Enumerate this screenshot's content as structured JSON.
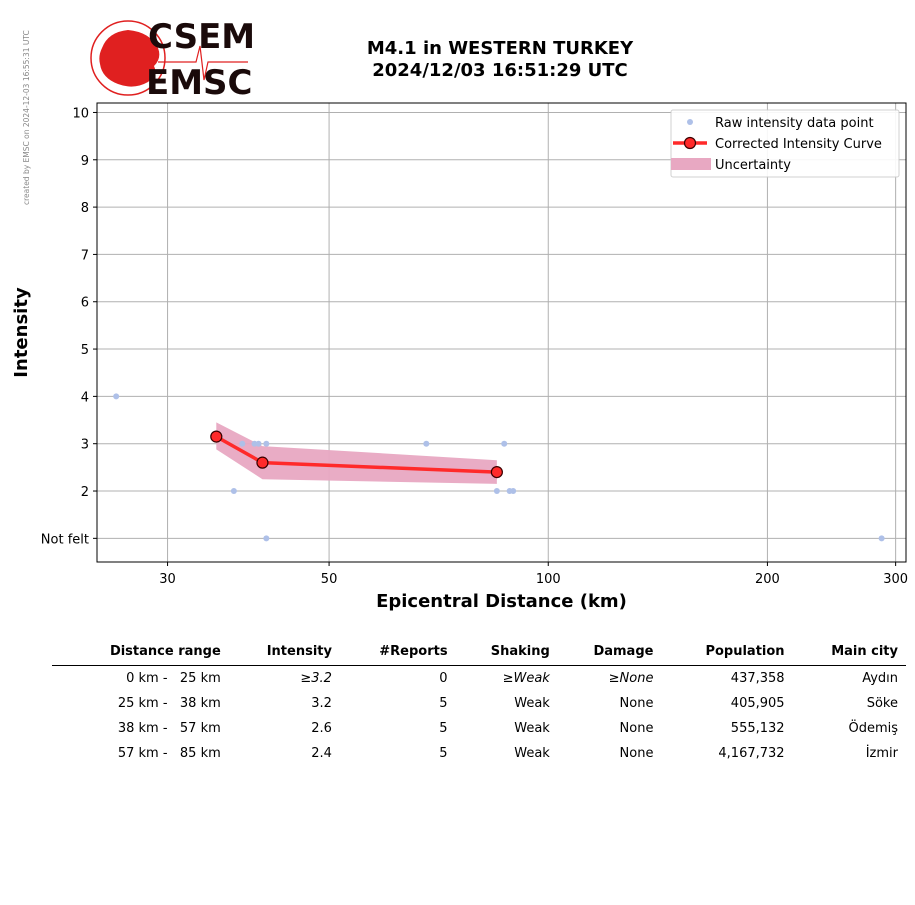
{
  "credit": "created by EMSC on 2024-12-03 16:55:31 UTC",
  "logo": {
    "top_text": "CSEM",
    "bottom_text": "EMSC"
  },
  "title_line1": "M4.1 in WESTERN TURKEY",
  "title_line2": "2024/12/03 16:51:29 UTC",
  "colors": {
    "raw": "#aec0e8",
    "curve": "#ff2a2a",
    "uncertainty": "#e8a8c2",
    "grid": "#b0b0b0"
  },
  "chart_data": {
    "type": "scatter",
    "xlabel": "Epicentral Distance (km)",
    "ylabel": "Intensity",
    "xscale": "log",
    "xlim": [
      24,
      310
    ],
    "ylim": [
      0.5,
      10.2
    ],
    "xticks": [
      30,
      50,
      100,
      200,
      300
    ],
    "yticks": [
      {
        "value": 1,
        "label": "Not felt"
      },
      {
        "value": 2,
        "label": "2"
      },
      {
        "value": 3,
        "label": "3"
      },
      {
        "value": 4,
        "label": "4"
      },
      {
        "value": 5,
        "label": "5"
      },
      {
        "value": 6,
        "label": "6"
      },
      {
        "value": 7,
        "label": "7"
      },
      {
        "value": 8,
        "label": "8"
      },
      {
        "value": 9,
        "label": "9"
      },
      {
        "value": 10,
        "label": "10"
      }
    ],
    "grid": true,
    "legend_position": "top-right",
    "legend": [
      "Raw intensity data point",
      "Corrected Intensity Curve",
      "Uncertainty"
    ],
    "raw_points": [
      {
        "x": 25.5,
        "y": 4
      },
      {
        "x": 37,
        "y": 2
      },
      {
        "x": 38,
        "y": 3
      },
      {
        "x": 39.5,
        "y": 3
      },
      {
        "x": 40.0,
        "y": 3
      },
      {
        "x": 41,
        "y": 3
      },
      {
        "x": 41,
        "y": 1
      },
      {
        "x": 68,
        "y": 3
      },
      {
        "x": 85,
        "y": 2
      },
      {
        "x": 87,
        "y": 3
      },
      {
        "x": 88.5,
        "y": 2
      },
      {
        "x": 89.5,
        "y": 2
      },
      {
        "x": 287,
        "y": 1
      }
    ],
    "curve": [
      {
        "x": 35,
        "y": 3.15
      },
      {
        "x": 40.5,
        "y": 2.6
      },
      {
        "x": 85,
        "y": 2.4
      }
    ],
    "uncertainty_band": {
      "x": [
        35,
        40.5,
        85
      ],
      "upper": [
        3.45,
        2.95,
        2.65
      ],
      "lower": [
        2.88,
        2.25,
        2.15
      ]
    }
  },
  "table": {
    "headers": [
      "Distance range",
      "Intensity",
      "#Reports",
      "Shaking",
      "Damage",
      "Population",
      "Main city"
    ],
    "rows": [
      [
        "0 km -   25 km",
        "≥3.2",
        "0",
        "≥Weak",
        "≥None",
        "437,358",
        "Aydın"
      ],
      [
        "25 km -   38 km",
        "3.2",
        "5",
        "Weak",
        "None",
        "405,905",
        "Söke"
      ],
      [
        "38 km -   57 km",
        "2.6",
        "5",
        "Weak",
        "None",
        "555,132",
        "Ödemiş"
      ],
      [
        "57 km -   85 km",
        "2.4",
        "5",
        "Weak",
        "None",
        "4,167,732",
        "İzmir"
      ]
    ]
  }
}
